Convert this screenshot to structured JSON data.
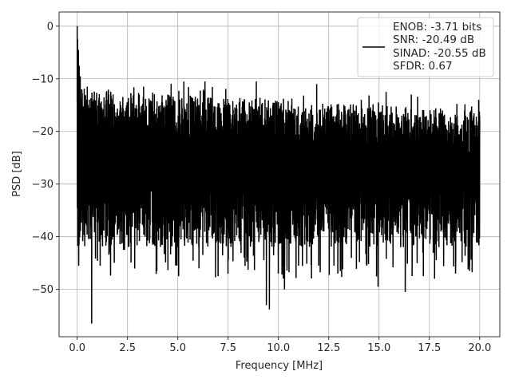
{
  "chart_data": {
    "type": "line",
    "xlabel": "Frequency [MHz]",
    "ylabel": "PSD [dB]",
    "xlim": [
      -0.9,
      21.0
    ],
    "ylim": [
      -59.0,
      2.7
    ],
    "xticks": [
      0.0,
      2.5,
      5.0,
      7.5,
      10.0,
      12.5,
      15.0,
      17.5,
      20.0
    ],
    "xtick_labels": [
      "0.0",
      "2.5",
      "5.0",
      "7.5",
      "10.0",
      "12.5",
      "15.0",
      "17.5",
      "20.0"
    ],
    "yticks": [
      0,
      -10,
      -20,
      -30,
      -40,
      -50
    ],
    "ytick_labels": [
      "0",
      "−10",
      "−20",
      "−30",
      "−40",
      "−50"
    ],
    "grid": true,
    "legend_position": "top-right",
    "line_color": "#000000",
    "series": [
      {
        "legend_lines": [
          "ENOB: -3.71 bits",
          "SNR: -20.49 dB",
          "SINAD: -20.55 dB",
          "SFDR: 0.67"
        ],
        "x_range": [
          0.0,
          20.0
        ],
        "noise_floor": {
          "mean_db": -22.5,
          "typical_peak_db_low_freq": -10,
          "typical_peak_db_high_freq": -14,
          "typical_trough_db": -36,
          "deep_trough_db": -46
        },
        "points": [
          [
            0.0,
            0.0
          ],
          [
            0.02,
            -2.5
          ],
          [
            0.04,
            -6.0
          ],
          [
            0.06,
            -4.5
          ],
          [
            0.08,
            -9.0
          ],
          [
            0.1,
            -7.5
          ],
          [
            0.12,
            -11.0
          ],
          [
            0.15,
            -9.5
          ],
          [
            0.18,
            -14.0
          ],
          [
            0.22,
            -12.0
          ],
          [
            0.5,
            -11.5
          ],
          [
            0.72,
            -56.5
          ],
          [
            1.45,
            -41.0
          ],
          [
            2.3,
            -42.5
          ],
          [
            2.35,
            -42.5
          ],
          [
            4.95,
            -45.5
          ],
          [
            6.05,
            -46.0
          ],
          [
            7.0,
            -47.5
          ],
          [
            8.3,
            -44.0
          ],
          [
            9.4,
            -53.0
          ],
          [
            9.55,
            -53.8
          ],
          [
            10.3,
            -50.0
          ],
          [
            11.0,
            -45.5
          ],
          [
            12.0,
            -45.5
          ],
          [
            12.95,
            -47.0
          ],
          [
            14.95,
            -49.5
          ],
          [
            16.3,
            -50.5
          ],
          [
            17.2,
            -47.5
          ],
          [
            18.8,
            -47.0
          ],
          [
            19.5,
            -46.5
          ],
          [
            3.3,
            -11.5
          ],
          [
            5.3,
            -10.5
          ],
          [
            6.35,
            -10.5
          ],
          [
            8.9,
            -10.5
          ],
          [
            11.9,
            -11.0
          ],
          [
            15.35,
            -12.5
          ],
          [
            16.6,
            -13.0
          ],
          [
            19.95,
            -14.0
          ],
          [
            20.0,
            -20.0
          ]
        ]
      }
    ]
  }
}
